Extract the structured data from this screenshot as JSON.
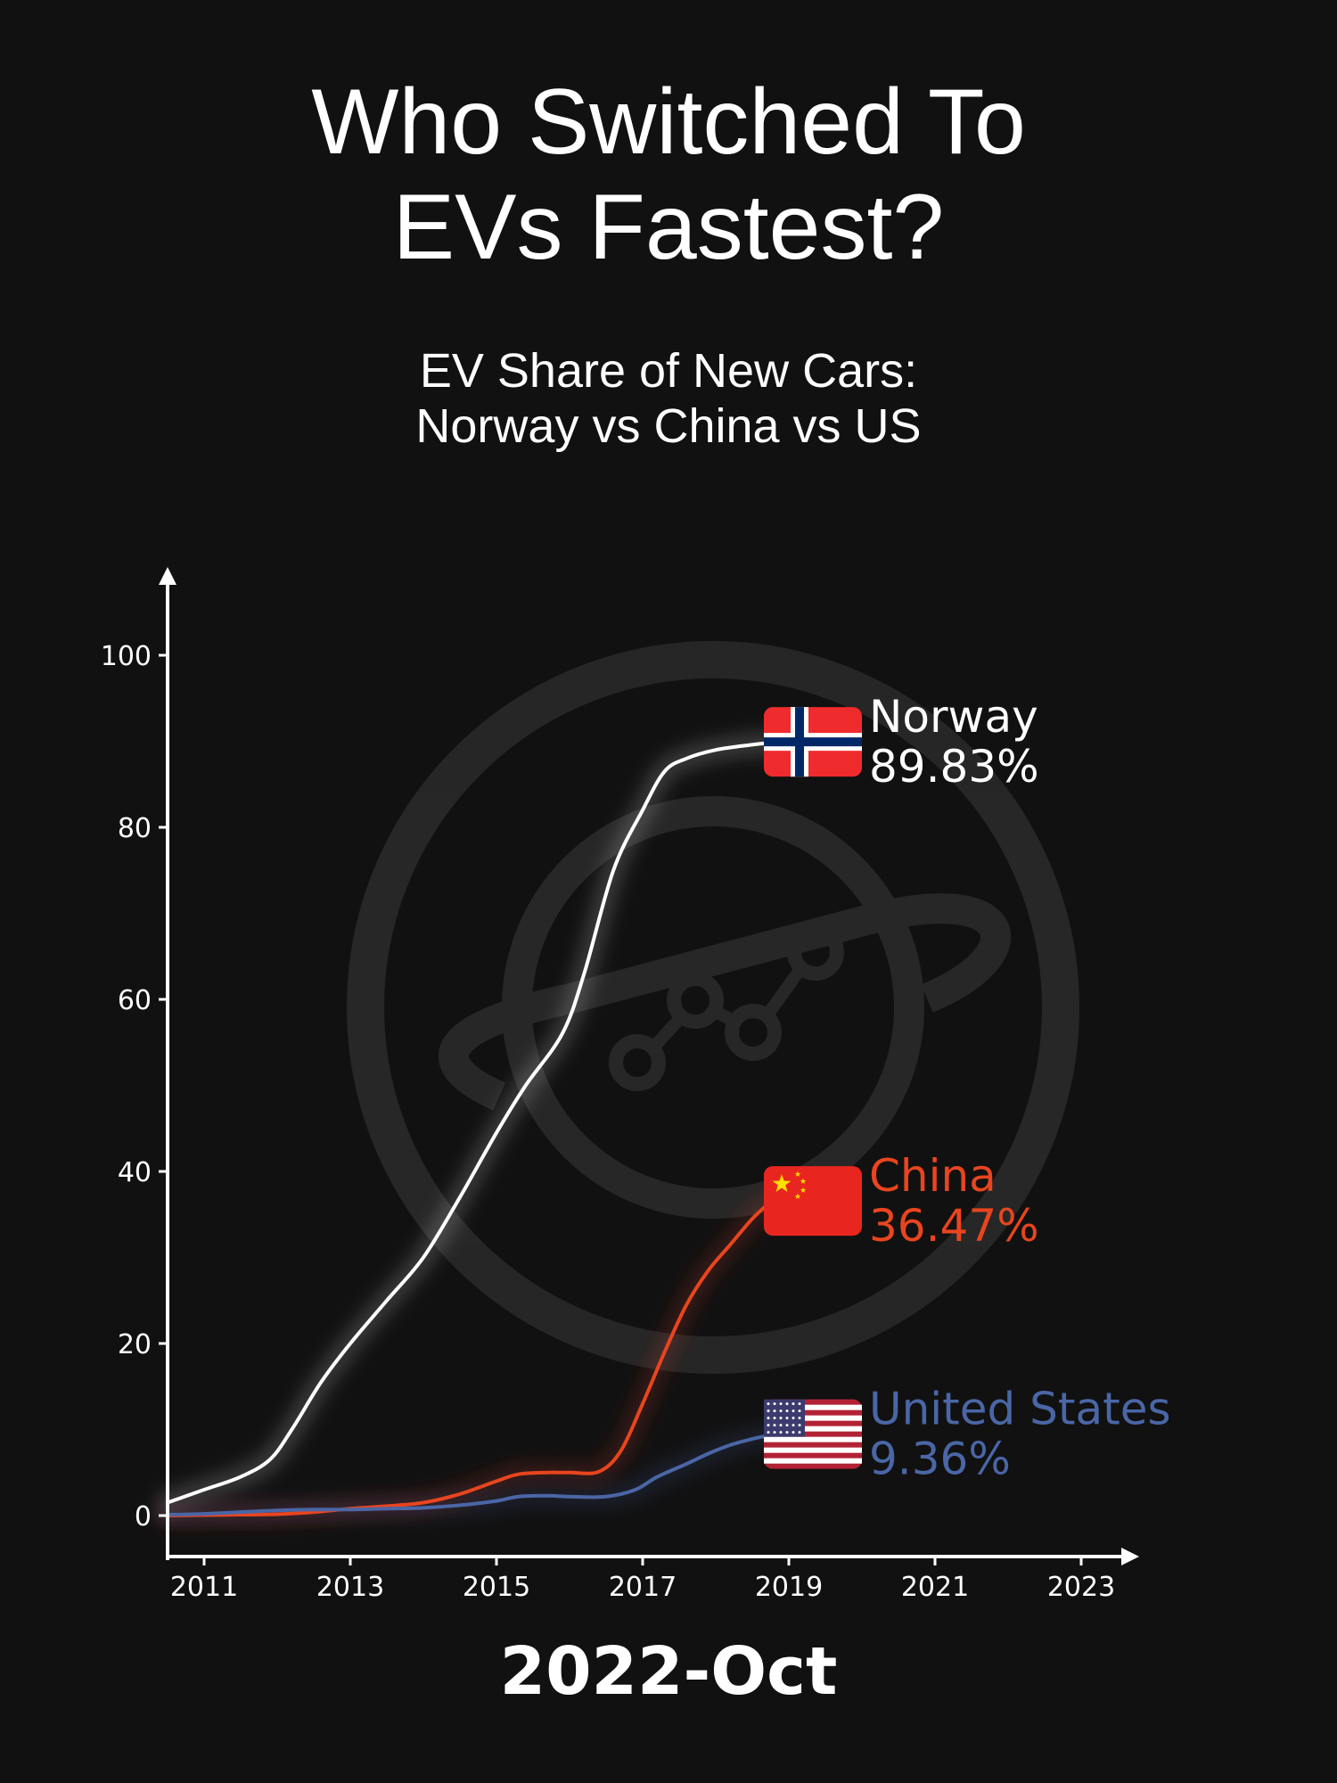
{
  "title_lines": [
    "Who Switched To",
    "EVs Fastest?"
  ],
  "subtitle_lines": [
    "EV Share of New Cars:",
    "Norway vs China vs US"
  ],
  "period_label": "2022-Oct",
  "colors": {
    "background": "#111111",
    "axis": "#ffffff",
    "Norway": "#ffffff",
    "China": "#e8451f",
    "United States": "#4a66a6"
  },
  "chart_data": {
    "type": "line",
    "xlim": [
      2010.5,
      2023.5
    ],
    "ylim": [
      0,
      100
    ],
    "x_ticks": [
      2011,
      2013,
      2015,
      2017,
      2019,
      2021,
      2023
    ],
    "y_ticks": [
      0,
      20,
      40,
      60,
      80,
      100
    ],
    "grid": false,
    "legend": "end-of-line labels with flags",
    "series": [
      {
        "name": "Norway",
        "value_label": "89.83%",
        "flag": "norway-flag",
        "x": [
          2010.5,
          2011.0,
          2011.5,
          2011.9,
          2012.2,
          2012.6,
          2013.0,
          2013.5,
          2014.0,
          2014.5,
          2015.0,
          2015.4,
          2015.9,
          2016.2,
          2016.6,
          2017.0,
          2017.3,
          2017.6,
          2018.0,
          2018.5,
          2018.75
        ],
        "y": [
          1.5,
          3,
          4.5,
          6.5,
          10,
          15.5,
          20,
          25,
          30,
          37,
          44.5,
          50,
          56,
          63,
          75,
          82,
          86.5,
          88,
          89,
          89.6,
          89.83
        ]
      },
      {
        "name": "China",
        "value_label": "36.47%",
        "flag": "china-flag",
        "x": [
          2010.5,
          2011.0,
          2011.5,
          2012.0,
          2012.5,
          2013.0,
          2013.5,
          2014.0,
          2014.5,
          2015.0,
          2015.3,
          2015.7,
          2016.0,
          2016.4,
          2016.7,
          2017.0,
          2017.3,
          2017.6,
          2017.9,
          2018.2,
          2018.5,
          2018.75
        ],
        "y": [
          0,
          0.05,
          0.1,
          0.15,
          0.4,
          0.8,
          1.1,
          1.5,
          2.5,
          4,
          4.8,
          5,
          5,
          5.1,
          7.5,
          13,
          19,
          24.5,
          28.5,
          31.5,
          34.5,
          36.47
        ]
      },
      {
        "name": "United States",
        "value_label": "9.36%",
        "flag": "us-flag",
        "x": [
          2010.5,
          2011.0,
          2011.5,
          2012.0,
          2012.5,
          2013.0,
          2013.5,
          2014.0,
          2014.5,
          2015.0,
          2015.3,
          2015.7,
          2016.0,
          2016.5,
          2016.9,
          2017.2,
          2017.6,
          2017.9,
          2018.2,
          2018.5,
          2018.75
        ],
        "y": [
          0.1,
          0.2,
          0.4,
          0.6,
          0.7,
          0.7,
          0.8,
          0.9,
          1.2,
          1.7,
          2.2,
          2.3,
          2.2,
          2.2,
          3.0,
          4.5,
          6,
          7.2,
          8.2,
          8.9,
          9.36
        ]
      }
    ]
  }
}
